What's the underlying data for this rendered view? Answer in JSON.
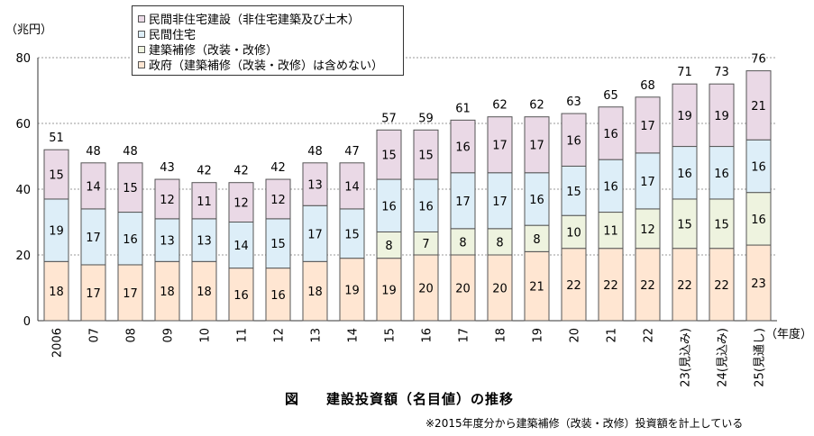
{
  "unit_label": "（兆円）",
  "fiscal_year_label": "（年度）",
  "caption": {
    "fig": "図",
    "title": "建設投資額（名目値）の推移"
  },
  "note": "※2015年度分から建築補修（改装・改修）投資額を計上している",
  "colors": {
    "public": "#ffe6d2",
    "renovation": "#eef3df",
    "private_housing": "#ddeef8",
    "private_nonhousing": "#ead9e6",
    "bar_border": "#555555",
    "grid": "#999999"
  },
  "chart_data": {
    "type": "bar",
    "stacked": true,
    "categories": [
      "2006",
      "07",
      "08",
      "09",
      "10",
      "11",
      "12",
      "13",
      "14",
      "15",
      "16",
      "17",
      "18",
      "19",
      "20",
      "21",
      "22",
      "23(見込み)",
      "24(見込み)",
      "25(見通し)"
    ],
    "series": [
      {
        "name": "政府（建築補修（改装・改修）は含めない）",
        "key": "public",
        "values": [
          18,
          17,
          17,
          18,
          18,
          16,
          16,
          18,
          19,
          19,
          20,
          20,
          20,
          21,
          22,
          22,
          22,
          22,
          22,
          23
        ]
      },
      {
        "name": "建築補修（改装・改修）",
        "key": "renovation",
        "values": [
          null,
          null,
          null,
          null,
          null,
          null,
          null,
          null,
          null,
          8,
          7,
          8,
          8,
          8,
          10,
          11,
          12,
          15,
          15,
          16
        ]
      },
      {
        "name": "民間住宅",
        "key": "private_housing",
        "values": [
          19,
          17,
          16,
          13,
          13,
          14,
          15,
          17,
          15,
          16,
          16,
          17,
          17,
          16,
          15,
          16,
          17,
          16,
          16,
          16
        ]
      },
      {
        "name": "民間非住宅建設（非住宅建築及び土木）",
        "key": "private_nonhousing",
        "values": [
          15,
          14,
          15,
          12,
          11,
          12,
          12,
          13,
          14,
          15,
          15,
          16,
          17,
          17,
          16,
          16,
          17,
          19,
          19,
          21
        ]
      }
    ],
    "totals": [
      51,
      48,
      48,
      43,
      42,
      42,
      42,
      48,
      47,
      57,
      59,
      61,
      62,
      62,
      63,
      65,
      68,
      71,
      73,
      76
    ],
    "ylim": [
      0,
      80
    ],
    "yticks": [
      0,
      20,
      40,
      60,
      80
    ],
    "grid": true,
    "legend": [
      "民間非住宅建設（非住宅建築及び土木）",
      "民間住宅",
      "建築補修（改装・改修）",
      "政府（建築補修（改装・改修）は含めない）"
    ],
    "legend_placement": "top-left"
  }
}
